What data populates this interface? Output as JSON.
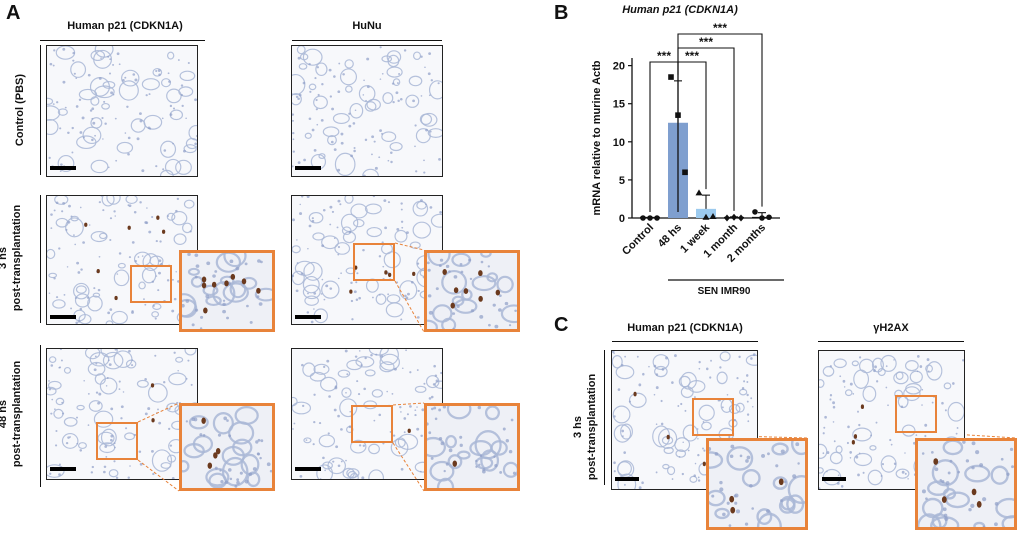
{
  "panel_a": {
    "letter": "A",
    "col_headers": [
      "Human p21 (CDKN1A)",
      "HuNu"
    ],
    "row_labels": [
      "Control (PBS)",
      "3 hs post-transplantation",
      "48 hs post-transplantation"
    ],
    "row_label_lines": [
      [
        "Control (PBS)"
      ],
      [
        "3 hs",
        "post-transplantation"
      ],
      [
        "48 hs",
        "post-transplantation"
      ]
    ]
  },
  "panel_b": {
    "letter": "B",
    "group_label": "SEN IMR90",
    "significance": [
      "***",
      "***",
      "***",
      "***"
    ]
  },
  "panel_c": {
    "letter": "C",
    "col_headers": [
      "Human p21 (CDKN1A)",
      "γH2AX"
    ],
    "row_label_lines": [
      "3 hs",
      "post-transplantation"
    ]
  },
  "colors": {
    "highlight": "#e8833a",
    "bar_48hs": "#7f9fcf",
    "bar_1week": "#9ccaee",
    "stain_blue": "#a9b7d6",
    "stain_brown": "#6b3a1e"
  },
  "chart_data": {
    "type": "bar",
    "title": "Human p21 (CDKN1A)",
    "ylabel": "mRNA relative to murine Actb",
    "categories": [
      "Control",
      "48 hs",
      "1 week",
      "1 month",
      "2 months"
    ],
    "values": [
      0,
      12.5,
      1.2,
      0.05,
      0.3
    ],
    "errors": [
      0,
      5.5,
      1.8,
      0.1,
      0.4
    ],
    "points": [
      {
        "category": "Control",
        "marker": "circle",
        "values": [
          0,
          0,
          0
        ]
      },
      {
        "category": "48 hs",
        "marker": "square",
        "values": [
          18.5,
          13.5,
          6.0
        ]
      },
      {
        "category": "1 week",
        "marker": "triangle",
        "values": [
          3.3,
          0.1,
          0.2
        ]
      },
      {
        "category": "1 month",
        "marker": "diamond",
        "values": [
          0.0,
          0.1,
          0.0
        ]
      },
      {
        "category": "2 months",
        "marker": "circle",
        "values": [
          0.8,
          0.0,
          0.1
        ]
      }
    ],
    "yticks": [
      0,
      5,
      10,
      15,
      20
    ],
    "ylim": [
      0,
      21
    ],
    "grid": false
  }
}
